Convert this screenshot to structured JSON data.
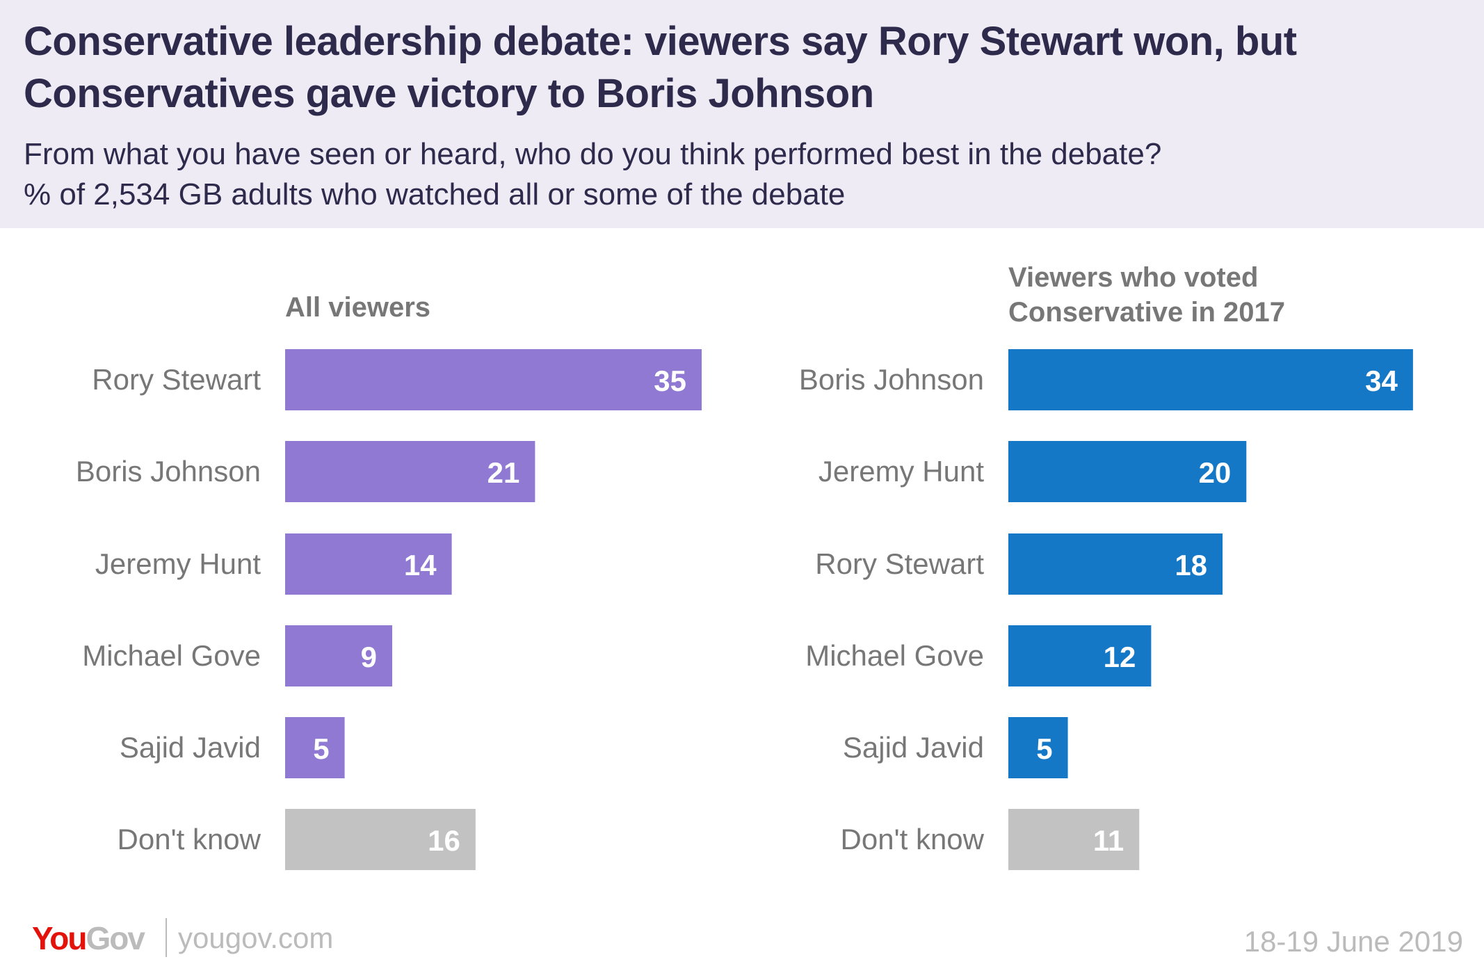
{
  "header": {
    "title": "Conservative leadership debate: viewers say Rory Stewart won, but Conservatives gave victory to Boris Johnson",
    "subtitle_line1": "From what you have seen or heard, who do you think performed best in the debate?",
    "subtitle_line2": "% of 2,534 GB adults who watched all or some of the debate"
  },
  "footer": {
    "logo_you": "You",
    "logo_gov": "Gov",
    "url": "yougov.com",
    "date": "18-19 June 2019"
  },
  "colors": {
    "all_viewers": "#8f79d3",
    "conservative_viewers": "#1478c6",
    "dont_know": "#c2c2c2",
    "label_text": "#777777",
    "value_text": "#ffffff"
  },
  "chart_data": [
    {
      "type": "bar",
      "orientation": "horizontal",
      "title": "All viewers",
      "categories": [
        "Rory Stewart",
        "Boris Johnson",
        "Jeremy Hunt",
        "Michael Gove",
        "Sajid Javid",
        "Don't know"
      ],
      "values": [
        35,
        21,
        14,
        9,
        5,
        16
      ],
      "xlabel": "",
      "ylabel": "",
      "xlim": [
        0,
        35
      ],
      "grid": false,
      "legend": "none"
    },
    {
      "type": "bar",
      "orientation": "horizontal",
      "title": "Viewers who voted Conservative in 2017",
      "categories": [
        "Boris Johnson",
        "Jeremy Hunt",
        "Rory Stewart",
        "Michael Gove",
        "Sajid Javid",
        "Don't know"
      ],
      "values": [
        34,
        20,
        18,
        12,
        5,
        11
      ],
      "xlabel": "",
      "ylabel": "",
      "xlim": [
        0,
        35
      ],
      "grid": false,
      "legend": "none"
    }
  ]
}
